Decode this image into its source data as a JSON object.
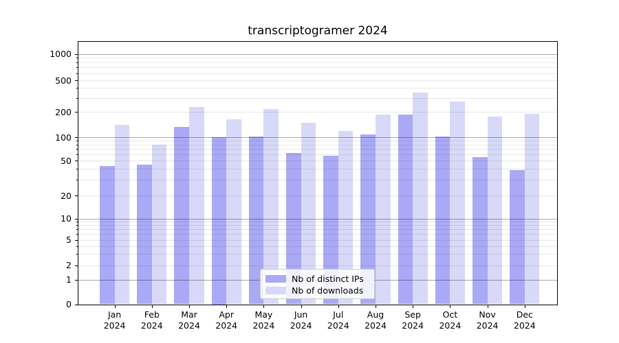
{
  "chart_data": {
    "type": "bar",
    "title": "transcriptogramer 2024",
    "categories": [
      "Jan",
      "Feb",
      "Mar",
      "Apr",
      "May",
      "Jun",
      "Jul",
      "Aug",
      "Sep",
      "Oct",
      "Nov",
      "Dec"
    ],
    "category_year": "2024",
    "series": [
      {
        "name": "Nb of distinct IPs",
        "color": "#a9a9f5",
        "values": [
          43,
          45,
          132,
          100,
          102,
          63,
          58,
          108,
          185,
          101,
          55,
          39
        ]
      },
      {
        "name": "Nb of downloads",
        "color": "#d8d8f8",
        "values": [
          139,
          80,
          230,
          164,
          217,
          148,
          118,
          186,
          352,
          270,
          176,
          188
        ]
      }
    ],
    "ylabel": "",
    "xlabel": "",
    "yscale": "symlog",
    "yticks": [
      0,
      1,
      2,
      5,
      10,
      20,
      50,
      100,
      200,
      500,
      1000
    ],
    "ylim": [
      0,
      1400
    ],
    "grid": "both",
    "legend_position": "lower center",
    "colors": {
      "spine": "#000000",
      "grid_major": "#a6a6a6",
      "grid_minor": "#ebebeb",
      "background": "#ffffff"
    }
  }
}
